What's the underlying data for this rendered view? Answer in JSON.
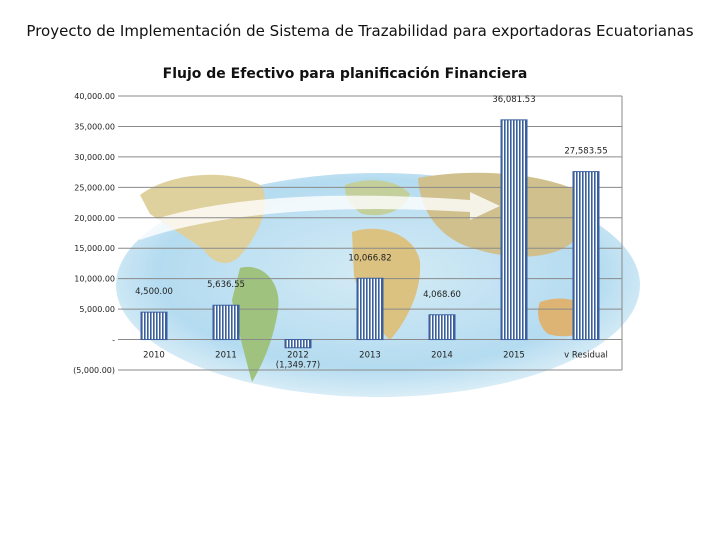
{
  "page": {
    "title": "Proyecto de Implementación de Sistema de Trazabilidad para exportadoras Ecuatorianas"
  },
  "chart_data": {
    "type": "bar",
    "title": "Flujo de Efectivo para planificación Financiera",
    "categories": [
      "2010",
      "2011",
      "2012",
      "2013",
      "2014",
      "2015",
      "v Residual"
    ],
    "values": [
      4500.0,
      5636.55,
      -1349.77,
      10066.82,
      4068.6,
      36081.53,
      27583.55
    ],
    "value_labels": [
      "4,500.00",
      "5,636.55",
      "(1,349.77)",
      "10,066.82",
      "4,068.60",
      "36,081.53",
      "27,583.55"
    ],
    "ylim": [
      -5000,
      40000
    ],
    "yticks": [
      -5000,
      0,
      5000,
      10000,
      15000,
      20000,
      25000,
      30000,
      35000,
      40000
    ],
    "ytick_labels": [
      "(5,000.00)",
      "-",
      "5,000.00",
      "10,000.00",
      "15,000.00",
      "20,000.00",
      "25,000.00",
      "30,000.00",
      "35,000.00",
      "40,000.00"
    ],
    "grid": true,
    "bar_color": "#3a5f9e",
    "background": "world map"
  }
}
